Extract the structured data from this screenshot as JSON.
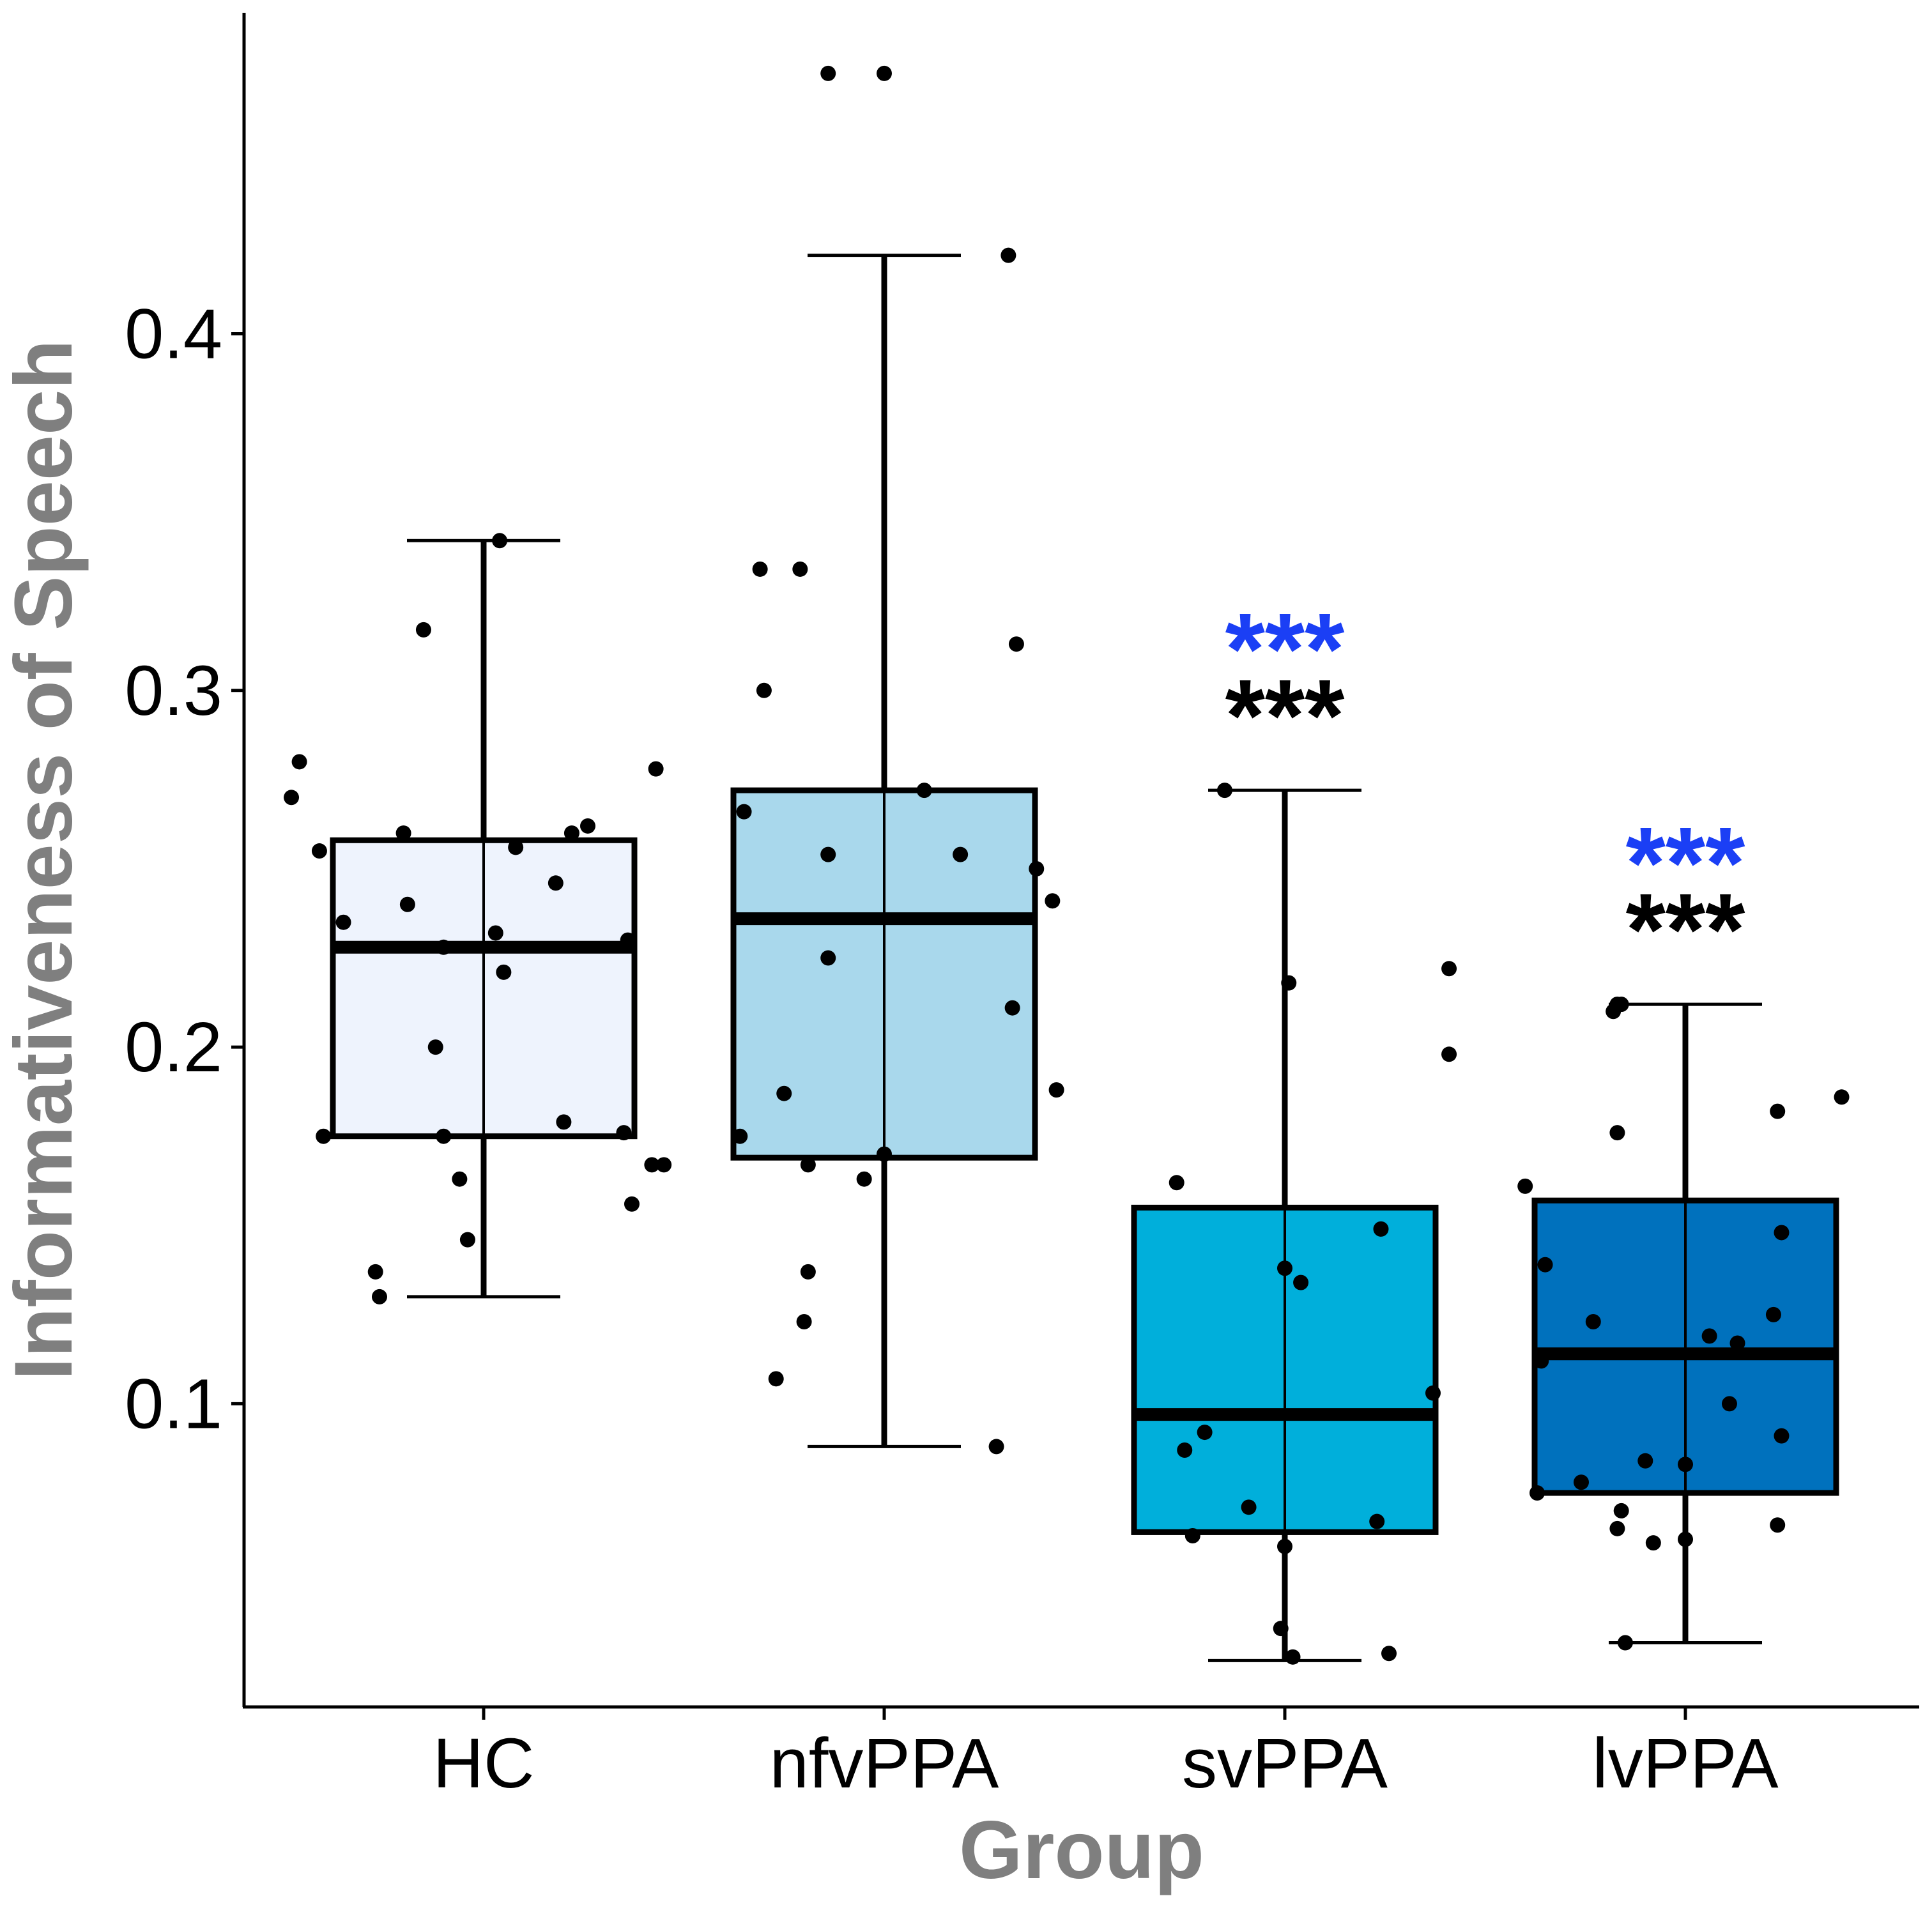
{
  "chart_data": {
    "type": "box",
    "title": "",
    "xlabel": "Group",
    "ylabel": "Informativeness of Speech",
    "ylim": [
      0.015,
      0.49
    ],
    "yticks": [
      0.1,
      0.2,
      0.3,
      0.4
    ],
    "ytick_labels": [
      "0.1",
      "0.2",
      "0.3",
      "0.4"
    ],
    "categories": [
      "HC",
      "nfvPPA",
      "svPPA",
      "lvPPA"
    ],
    "colors": [
      "#eef3fd",
      "#a9d8ec",
      "#00afdb",
      "#0071bd"
    ],
    "boxes": [
      {
        "group": "HC",
        "whisker_low": 0.13,
        "q1": 0.175,
        "median": 0.228,
        "q3": 0.258,
        "whisker_high": 0.342
      },
      {
        "group": "nfvPPA",
        "whisker_low": 0.088,
        "q1": 0.169,
        "median": 0.236,
        "q3": 0.272,
        "whisker_high": 0.422
      },
      {
        "group": "svPPA",
        "whisker_low": 0.028,
        "q1": 0.064,
        "median": 0.097,
        "q3": 0.155,
        "whisker_high": 0.272
      },
      {
        "group": "lvPPA",
        "whisker_low": 0.033,
        "q1": 0.075,
        "median": 0.114,
        "q3": 0.157,
        "whisker_high": 0.212
      }
    ],
    "points": [
      [
        {
          "x": -0.48,
          "y": 0.27
        },
        {
          "x": -0.46,
          "y": 0.28
        },
        {
          "x": -0.41,
          "y": 0.255
        },
        {
          "x": -0.35,
          "y": 0.235
        },
        {
          "x": -0.2,
          "y": 0.26
        },
        {
          "x": -0.19,
          "y": 0.24
        },
        {
          "x": -0.15,
          "y": 0.317
        },
        {
          "x": -0.12,
          "y": 0.2
        },
        {
          "x": -0.1,
          "y": 0.228
        },
        {
          "x": 0.03,
          "y": 0.232
        },
        {
          "x": 0.05,
          "y": 0.221
        },
        {
          "x": 0.04,
          "y": 0.342
        },
        {
          "x": 0.08,
          "y": 0.256
        },
        {
          "x": 0.18,
          "y": 0.246
        },
        {
          "x": 0.22,
          "y": 0.26
        },
        {
          "x": 0.26,
          "y": 0.262
        },
        {
          "x": 0.36,
          "y": 0.23
        },
        {
          "x": 0.43,
          "y": 0.278
        },
        {
          "x": -0.4,
          "y": 0.175
        },
        {
          "x": -0.1,
          "y": 0.175
        },
        {
          "x": -0.06,
          "y": 0.163
        },
        {
          "x": -0.04,
          "y": 0.146
        },
        {
          "x": 0.2,
          "y": 0.179
        },
        {
          "x": 0.35,
          "y": 0.176
        },
        {
          "x": 0.37,
          "y": 0.156
        },
        {
          "x": 0.42,
          "y": 0.167
        },
        {
          "x": 0.45,
          "y": 0.167
        },
        {
          "x": -0.27,
          "y": 0.137
        },
        {
          "x": -0.26,
          "y": 0.13
        }
      ],
      [
        {
          "x": -0.31,
          "y": 0.334
        },
        {
          "x": -0.21,
          "y": 0.334
        },
        {
          "x": -0.3,
          "y": 0.3
        },
        {
          "x": -0.35,
          "y": 0.266
        },
        {
          "x": -0.14,
          "y": 0.254
        },
        {
          "x": 0.1,
          "y": 0.272
        },
        {
          "x": 0.19,
          "y": 0.254
        },
        {
          "x": 0.38,
          "y": 0.25
        },
        {
          "x": 0.42,
          "y": 0.241
        },
        {
          "x": -0.14,
          "y": 0.225
        },
        {
          "x": 0.32,
          "y": 0.211
        },
        {
          "x": 0.43,
          "y": 0.188
        },
        {
          "x": -0.25,
          "y": 0.187
        },
        {
          "x": -0.36,
          "y": 0.175
        },
        {
          "x": 0.0,
          "y": 0.17
        },
        {
          "x": -0.19,
          "y": 0.167
        },
        {
          "x": -0.05,
          "y": 0.163
        },
        {
          "x": -0.19,
          "y": 0.137
        },
        {
          "x": -0.2,
          "y": 0.123
        },
        {
          "x": -0.27,
          "y": 0.107
        },
        {
          "x": 0.28,
          "y": 0.088
        },
        {
          "x": 0.31,
          "y": 0.422
        },
        {
          "x": 0.33,
          "y": 0.313
        },
        {
          "x": -0.14,
          "y": 0.473
        },
        {
          "x": 0.0,
          "y": 0.473
        }
      ],
      [
        {
          "x": -0.15,
          "y": 0.272
        },
        {
          "x": 0.01,
          "y": 0.218
        },
        {
          "x": -0.27,
          "y": 0.162
        },
        {
          "x": 0.24,
          "y": 0.149
        },
        {
          "x": 0.0,
          "y": 0.138
        },
        {
          "x": 0.04,
          "y": 0.134
        },
        {
          "x": 0.37,
          "y": 0.103
        },
        {
          "x": -0.2,
          "y": 0.092
        },
        {
          "x": -0.25,
          "y": 0.087
        },
        {
          "x": -0.09,
          "y": 0.071
        },
        {
          "x": 0.23,
          "y": 0.067
        },
        {
          "x": -0.23,
          "y": 0.063
        },
        {
          "x": 0.0,
          "y": 0.06
        },
        {
          "x": -0.01,
          "y": 0.037
        },
        {
          "x": 0.02,
          "y": 0.029
        },
        {
          "x": 0.26,
          "y": 0.03
        },
        {
          "x": 0.41,
          "y": 0.222
        },
        {
          "x": 0.41,
          "y": 0.198
        }
      ],
      [
        {
          "x": -0.18,
          "y": 0.21
        },
        {
          "x": -0.17,
          "y": 0.212
        },
        {
          "x": -0.16,
          "y": 0.212
        },
        {
          "x": -0.17,
          "y": 0.176
        },
        {
          "x": 0.23,
          "y": 0.182
        },
        {
          "x": 0.39,
          "y": 0.186
        },
        {
          "x": -0.4,
          "y": 0.161
        },
        {
          "x": 0.24,
          "y": 0.148
        },
        {
          "x": -0.35,
          "y": 0.139
        },
        {
          "x": 0.22,
          "y": 0.125
        },
        {
          "x": -0.23,
          "y": 0.123
        },
        {
          "x": 0.06,
          "y": 0.119
        },
        {
          "x": 0.13,
          "y": 0.117
        },
        {
          "x": -0.36,
          "y": 0.112
        },
        {
          "x": 0.11,
          "y": 0.1
        },
        {
          "x": 0.24,
          "y": 0.091
        },
        {
          "x": -0.1,
          "y": 0.084
        },
        {
          "x": 0.0,
          "y": 0.083
        },
        {
          "x": -0.26,
          "y": 0.078
        },
        {
          "x": -0.37,
          "y": 0.075
        },
        {
          "x": -0.16,
          "y": 0.07
        },
        {
          "x": -0.17,
          "y": 0.065
        },
        {
          "x": -0.08,
          "y": 0.061
        },
        {
          "x": 0.0,
          "y": 0.062
        },
        {
          "x": 0.23,
          "y": 0.066
        },
        {
          "x": -0.15,
          "y": 0.033
        }
      ]
    ],
    "annotations": [
      {
        "group": "svPPA",
        "stacked": [
          "***",
          "***"
        ],
        "colors": [
          "#1b3ff5",
          "#000000"
        ]
      },
      {
        "group": "lvPPA",
        "stacked": [
          "***",
          "***"
        ],
        "colors": [
          "#1b3ff5",
          "#000000"
        ]
      }
    ]
  }
}
